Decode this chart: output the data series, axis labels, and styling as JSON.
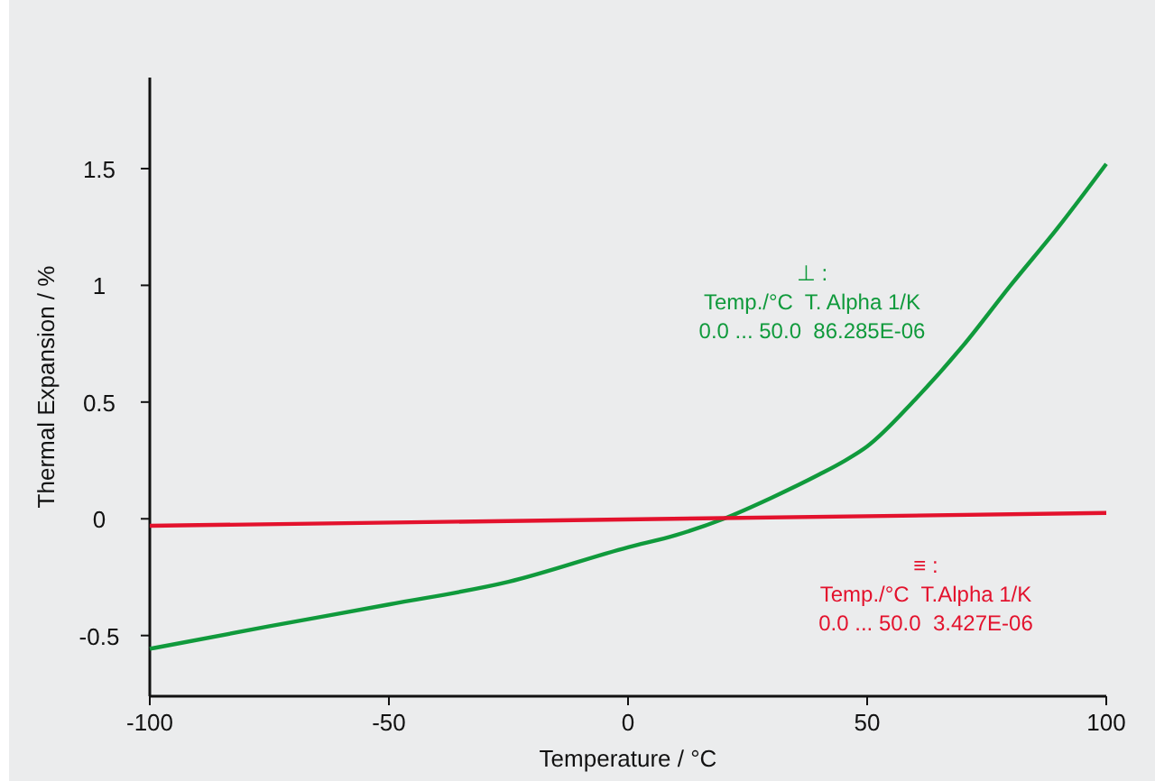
{
  "chart_data": {
    "type": "line",
    "xlabel": "Temperature / °C",
    "ylabel": "Thermal Expansion / %",
    "xlim": [
      -100,
      100
    ],
    "xticks": [
      -100,
      -50,
      0,
      50,
      100
    ],
    "ylim": [
      -0.76,
      1.89
    ],
    "yticks": [
      {
        "value": -0.5,
        "label": "-0.5"
      },
      0,
      0.5,
      1.0,
      1.5
    ],
    "grid": false,
    "marker": "none",
    "line_style": "solid",
    "series": [
      {
        "name": "⊥ :\nTemp./°C  T. Alpha 1/K\n0.0 ... 50.0  86.285E-06",
        "color": "#109a3c",
        "x": [
          -100,
          -75,
          -50,
          -25,
          0,
          10,
          20,
          30,
          40,
          45,
          50,
          60,
          70,
          80,
          90,
          100
        ],
        "values": [
          -0.557,
          -0.46,
          -0.367,
          -0.27,
          -0.122,
          -0.07,
          0,
          0.09,
          0.19,
          0.245,
          0.31,
          0.51,
          0.74,
          1.0,
          1.25,
          1.52
        ]
      },
      {
        "name": "≡ :\nTemp./°C  T.Alpha 1/K\n0.0 ... 50.0  3.427E-06",
        "color": "#e3122d",
        "x": [
          -100,
          100
        ],
        "values": [
          -0.03,
          0.025
        ]
      }
    ]
  }
}
